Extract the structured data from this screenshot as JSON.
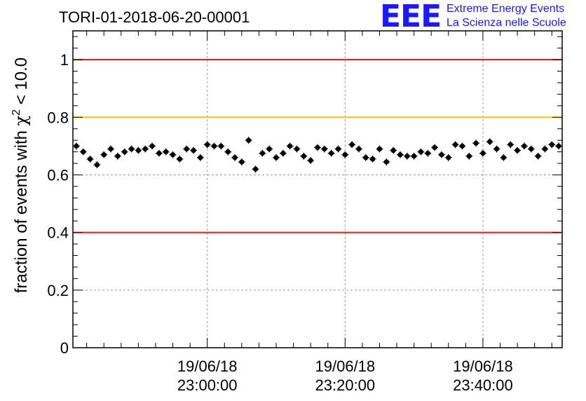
{
  "title": "TORI-01-2018-06-20-00001",
  "logo": {
    "mark": "EEE",
    "line1": "Extreme Energy Events",
    "line2": "La Scienza nelle Scuole",
    "color": "#1a1aff"
  },
  "chart_data": {
    "type": "scatter",
    "title": "TORI-01-2018-06-20-00001",
    "ylabel_prefix": "fraction of events with ",
    "ylabel_symbol": "χ",
    "ylabel_exponent": "2",
    "ylabel_suffix": " < 10.0",
    "xlabel": "",
    "x_time_axis": true,
    "x_range_minutes": [
      -39.5,
      31.5
    ],
    "x_ticks": [
      {
        "minute": -20,
        "date": "19/06/18",
        "time": "23:00:00"
      },
      {
        "minute": 0,
        "date": "19/06/18",
        "time": "23:20:00"
      },
      {
        "minute": 20,
        "date": "19/06/18",
        "time": "23:40:00"
      }
    ],
    "ylim": [
      0,
      1.1
    ],
    "y_ticks": [
      "0",
      "0.2",
      "0.4",
      "0.6",
      "0.8",
      "1"
    ],
    "grid": true,
    "reference_lines": [
      {
        "y": 1.0,
        "color": "#e41a1c"
      },
      {
        "y": 0.8,
        "color": "#ffc000"
      },
      {
        "y": 0.4,
        "color": "#e41a1c"
      }
    ],
    "series": [
      {
        "color": "#000000",
        "x_start_minute": -39,
        "x_step_minutes": 1,
        "y_error": 0.012,
        "values": [
          0.7,
          0.68,
          0.655,
          0.635,
          0.67,
          0.69,
          0.665,
          0.68,
          0.69,
          0.685,
          0.69,
          0.7,
          0.675,
          0.68,
          0.67,
          0.655,
          0.69,
          0.685,
          0.66,
          0.705,
          0.7,
          0.7,
          0.68,
          0.66,
          0.645,
          0.72,
          0.62,
          0.675,
          0.69,
          0.66,
          0.675,
          0.7,
          0.69,
          0.665,
          0.65,
          0.695,
          0.69,
          0.675,
          0.69,
          0.67,
          0.705,
          0.69,
          0.66,
          0.655,
          0.69,
          0.645,
          0.685,
          0.67,
          0.665,
          0.665,
          0.68,
          0.675,
          0.695,
          0.67,
          0.66,
          0.705,
          0.7,
          0.665,
          0.71,
          0.675,
          0.715,
          0.69,
          0.66,
          0.705,
          0.685,
          0.7,
          0.69,
          0.665,
          0.69,
          0.705,
          0.7
        ]
      }
    ]
  }
}
